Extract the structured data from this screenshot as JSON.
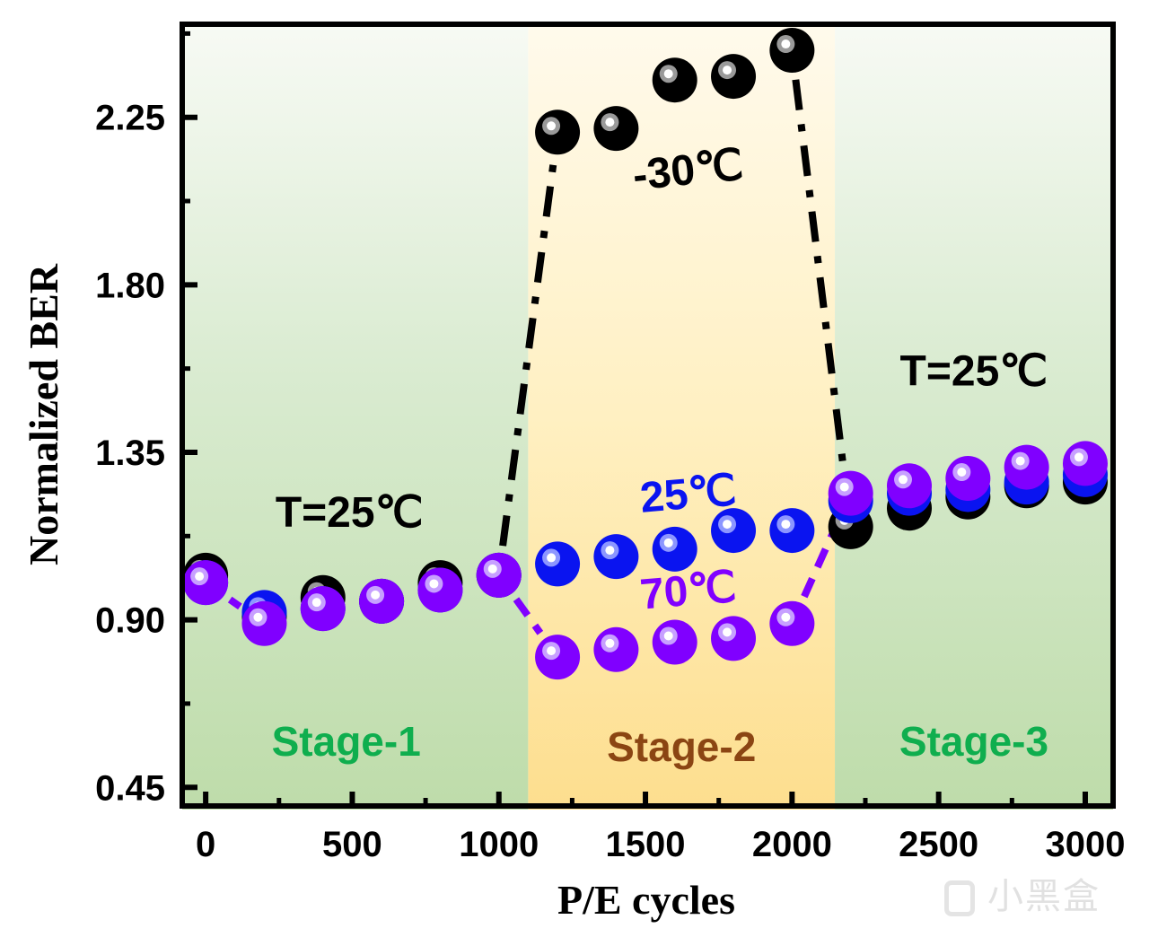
{
  "chart_data": {
    "type": "scatter",
    "title": "",
    "xlabel": "P/E cycles",
    "ylabel": "Normalized BER",
    "xlim": [
      -80,
      3095
    ],
    "ylim": [
      0.4,
      2.5
    ],
    "x_ticks": [
      0,
      500,
      1000,
      1500,
      2000,
      2500,
      3000
    ],
    "x_tick_labels": [
      "0",
      "500",
      "1000",
      "1500",
      "2000",
      "2500",
      "3000"
    ],
    "x_minor_ticks": [
      250,
      750,
      1250,
      1750,
      2250,
      2750
    ],
    "y_ticks": [
      0.45,
      0.9,
      1.35,
      1.8,
      2.25
    ],
    "y_tick_labels": [
      "0.45",
      "0.90",
      "1.35",
      "1.80",
      "2.25"
    ],
    "y_minor_ticks": [
      0.675,
      1.125,
      1.575,
      2.025,
      2.475
    ],
    "grid": false,
    "legend": "none",
    "stages": [
      {
        "label": "Stage-1",
        "x_range": [
          -80,
          1100
        ],
        "color": "#c2deb0",
        "label_color": "#0fae4e"
      },
      {
        "label": "Stage-2",
        "x_range": [
          1100,
          2146
        ],
        "color": "#fde49a",
        "label_color": "#8b4513"
      },
      {
        "label": "Stage-3",
        "x_range": [
          2146,
          3095
        ],
        "color": "#c2deb0",
        "label_color": "#0fae4e"
      }
    ],
    "x": [
      0,
      200,
      400,
      600,
      800,
      1000,
      1200,
      1400,
      1600,
      1800,
      2000,
      2200,
      2400,
      2600,
      2800,
      3000
    ],
    "series": [
      {
        "name": "-30℃",
        "color": "#000000",
        "highlight": "#9a9a9a",
        "line_style": "dash-dot",
        "connect_segments": [
          [
            5,
            6
          ],
          [
            10,
            11
          ]
        ],
        "values": [
          1.02,
          0.91,
          0.96,
          0.95,
          1.0,
          1.02,
          2.21,
          2.22,
          2.35,
          2.36,
          2.43,
          1.15,
          1.2,
          1.23,
          1.26,
          1.27
        ]
      },
      {
        "name": "25℃",
        "color": "#0a14f0",
        "highlight": "#8c96ff",
        "line_style": "none",
        "connect_segments": [],
        "values": [
          1.0,
          0.92,
          0.93,
          0.95,
          0.98,
          1.02,
          1.05,
          1.07,
          1.09,
          1.14,
          1.14,
          1.22,
          1.24,
          1.25,
          1.27,
          1.29
        ]
      },
      {
        "name": "70℃",
        "color": "#8000ff",
        "highlight": "#c7a0ff",
        "line_style": "dashed",
        "connect_segments": [
          [
            0,
            1
          ],
          [
            5,
            6
          ],
          [
            10,
            11
          ]
        ],
        "values": [
          1.0,
          0.89,
          0.93,
          0.95,
          0.98,
          1.02,
          0.8,
          0.82,
          0.84,
          0.85,
          0.89,
          1.24,
          1.26,
          1.28,
          1.31,
          1.32
        ]
      }
    ],
    "annotations": [
      {
        "text": "T=25℃",
        "x": 490,
        "y": 1.15,
        "color": "#000000"
      },
      {
        "text": "-30℃",
        "x": 1650,
        "y": 2.07,
        "color": "#000000"
      },
      {
        "text": "25℃",
        "x": 1650,
        "y": 1.2,
        "color": "#0a14f0"
      },
      {
        "text": "70℃",
        "x": 1650,
        "y": 0.94,
        "color": "#8000ff"
      },
      {
        "text": "T=25℃",
        "x": 2620,
        "y": 1.53,
        "color": "#000000"
      }
    ]
  },
  "watermark": {
    "text": "小黑盒"
  }
}
